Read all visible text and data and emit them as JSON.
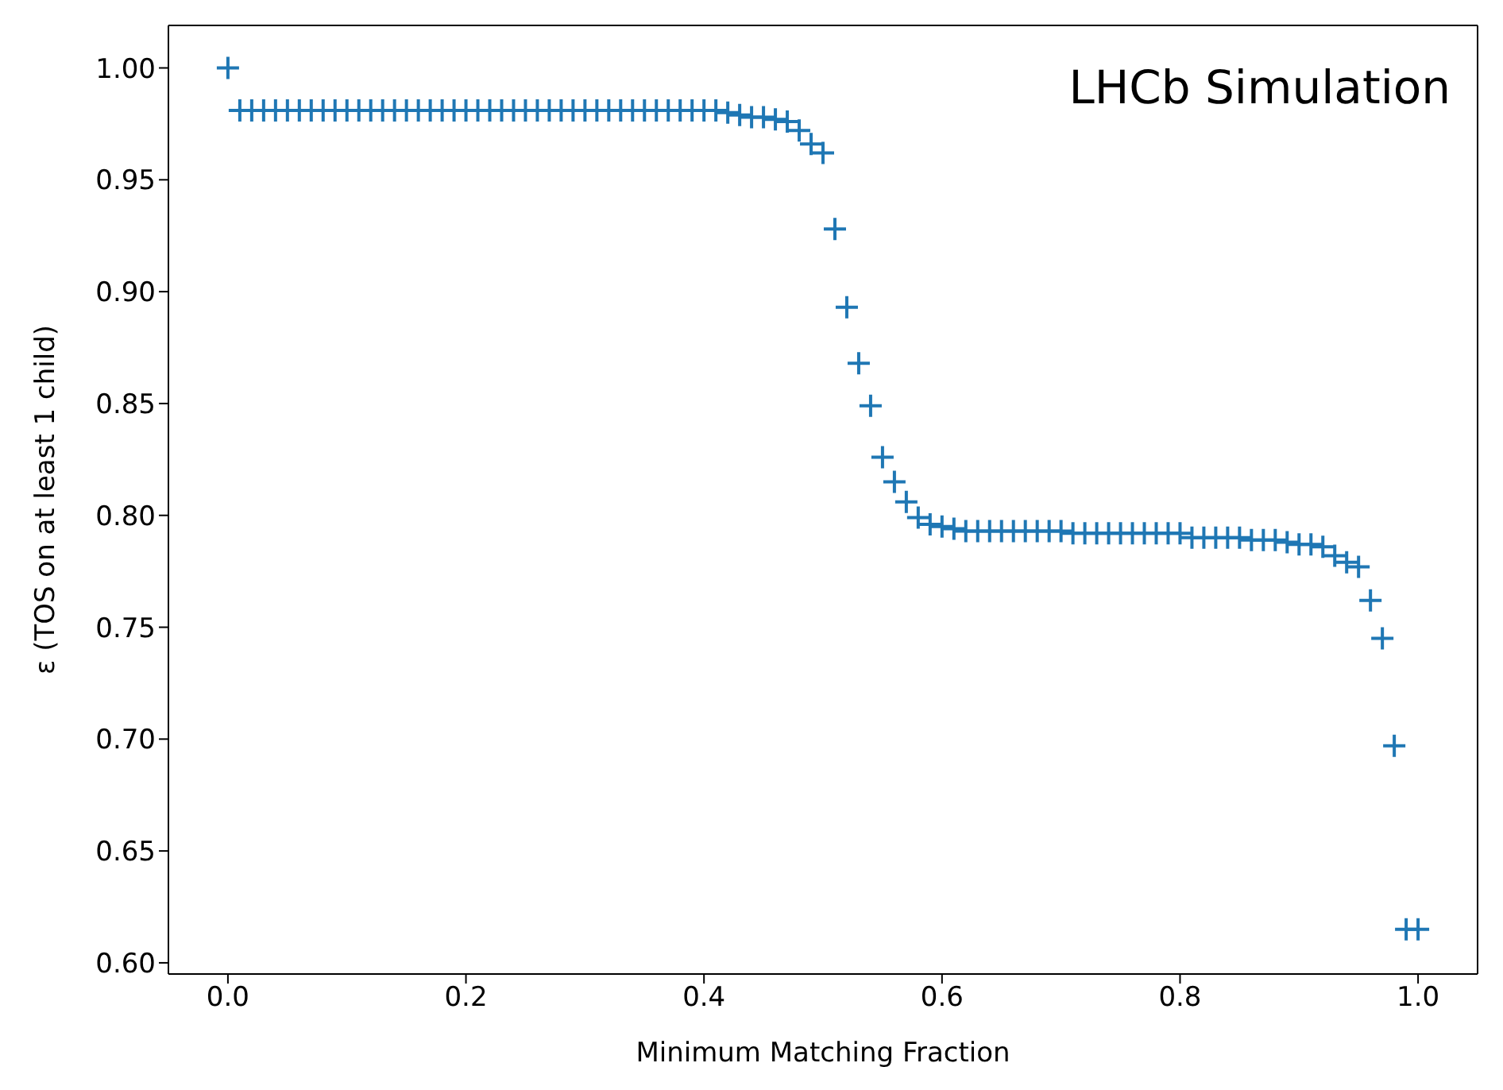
{
  "chart_data": {
    "type": "scatter",
    "xlabel": "Minimum Matching Fraction",
    "ylabel": "ε (TOS on at least 1 child)",
    "annotations": [
      "LHCb Simulation"
    ],
    "x": [
      0,
      0.01,
      0.02,
      0.03,
      0.04,
      0.05,
      0.06,
      0.07,
      0.08,
      0.09,
      0.1,
      0.11,
      0.12,
      0.13,
      0.14,
      0.15,
      0.16,
      0.17,
      0.18,
      0.19,
      0.2,
      0.21,
      0.22,
      0.23,
      0.24,
      0.25,
      0.26,
      0.27,
      0.28,
      0.29,
      0.3,
      0.31,
      0.32,
      0.33,
      0.34,
      0.35,
      0.36,
      0.37,
      0.38,
      0.39,
      0.4,
      0.41,
      0.42,
      0.43,
      0.44,
      0.45,
      0.46,
      0.47,
      0.48,
      0.49,
      0.5,
      0.51,
      0.52,
      0.53,
      0.54,
      0.55,
      0.56,
      0.57,
      0.58,
      0.59,
      0.6,
      0.61,
      0.62,
      0.63,
      0.64,
      0.65,
      0.66,
      0.67,
      0.68,
      0.69,
      0.7,
      0.71,
      0.72,
      0.73,
      0.74,
      0.75,
      0.76,
      0.77,
      0.78,
      0.79,
      0.8,
      0.81,
      0.82,
      0.83,
      0.84,
      0.85,
      0.86,
      0.87,
      0.88,
      0.89,
      0.9,
      0.91,
      0.92,
      0.93,
      0.94,
      0.95,
      0.96,
      0.97,
      0.98,
      0.99,
      1
    ],
    "series": [
      {
        "color": "#1f77b4",
        "values": [
          1.0,
          0.981,
          0.981,
          0.981,
          0.981,
          0.981,
          0.981,
          0.981,
          0.981,
          0.981,
          0.981,
          0.981,
          0.981,
          0.981,
          0.981,
          0.981,
          0.981,
          0.981,
          0.981,
          0.981,
          0.981,
          0.981,
          0.981,
          0.981,
          0.981,
          0.981,
          0.981,
          0.981,
          0.981,
          0.981,
          0.981,
          0.981,
          0.981,
          0.981,
          0.981,
          0.981,
          0.981,
          0.981,
          0.981,
          0.981,
          0.981,
          0.981,
          0.98,
          0.979,
          0.978,
          0.978,
          0.977,
          0.976,
          0.972,
          0.966,
          0.962,
          0.928,
          0.893,
          0.868,
          0.849,
          0.826,
          0.815,
          0.806,
          0.799,
          0.796,
          0.795,
          0.794,
          0.793,
          0.793,
          0.793,
          0.793,
          0.793,
          0.793,
          0.793,
          0.793,
          0.793,
          0.792,
          0.792,
          0.792,
          0.792,
          0.792,
          0.792,
          0.792,
          0.792,
          0.792,
          0.792,
          0.79,
          0.79,
          0.79,
          0.79,
          0.79,
          0.789,
          0.789,
          0.789,
          0.788,
          0.787,
          0.787,
          0.786,
          0.782,
          0.779,
          0.777,
          0.762,
          0.745,
          0.697,
          0.615,
          0.615
        ]
      }
    ],
    "xlim": [
      -0.05,
      1.05
    ],
    "xticks": [
      {
        "value": 0,
        "label": "0.0"
      },
      0.2,
      0.4,
      0.6,
      0.8,
      {
        "value": 1,
        "label": "1.0"
      }
    ],
    "ylim": [
      0.595,
      1.019
    ],
    "yticks": [
      {
        "value": 0.6,
        "label": "0.60"
      },
      0.65,
      {
        "value": 0.7,
        "label": "0.70"
      },
      0.75,
      {
        "value": 0.8,
        "label": "0.80"
      },
      0.85,
      {
        "value": 0.9,
        "label": "0.90"
      },
      0.95,
      {
        "value": 1,
        "label": "1.00"
      }
    ],
    "marker": "cross"
  }
}
